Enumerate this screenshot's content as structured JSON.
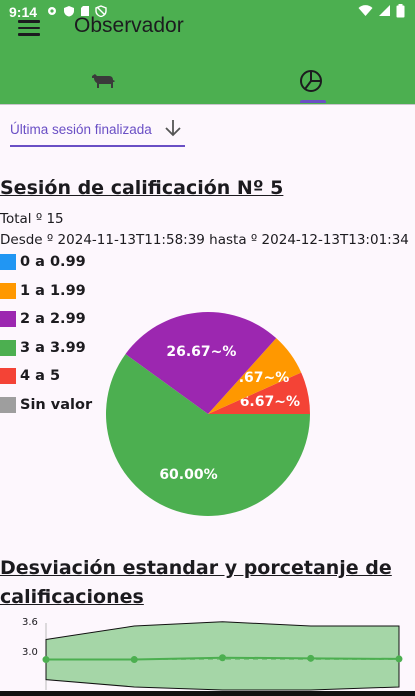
{
  "status_bar": {
    "time": "9:14"
  },
  "app_bar": {
    "title": "Observador"
  },
  "tabs": [
    {
      "icon": "cow-icon",
      "selected": false
    },
    {
      "icon": "pie-chart-icon",
      "selected": true
    }
  ],
  "session_select": {
    "value": "Última sesión finalizada"
  },
  "session": {
    "title": "Sesión de calificación Nº 5",
    "total": "Total º 15",
    "range": "Desde º 2024-11-13T11:58:39 hasta º 2024-12-13T13:01:34"
  },
  "legend": [
    {
      "label": "0 a 0.99",
      "color": "#2196f3"
    },
    {
      "label": "1 a 1.99",
      "color": "#ff9800"
    },
    {
      "label": "2 a 2.99",
      "color": "#9c27b0"
    },
    {
      "label": "3 a 3.99",
      "color": "#4caf50"
    },
    {
      "label": "4 a 5",
      "color": "#f44336"
    },
    {
      "label": "Sin valor",
      "color": "#9e9e9e"
    }
  ],
  "chart_data": [
    {
      "type": "pie",
      "slices": [
        {
          "label": "4 a 5",
          "value": 6.67,
          "text": "6.67~%",
          "color": "#f44336"
        },
        {
          "label": "1 a 1.99",
          "value": 6.67,
          "text": "6.67~%",
          "color": "#ff9800"
        },
        {
          "label": "2 a 2.99",
          "value": 26.67,
          "text": "26.67~%",
          "color": "#9c27b0"
        },
        {
          "label": "3 a 3.99",
          "value": 60.0,
          "text": "60.00%",
          "color": "#4caf50"
        }
      ]
    },
    {
      "type": "line",
      "title": "Desviación estandar y porcetanje de calificaciones",
      "yticks": [
        "3.6",
        "3.0"
      ],
      "x": [
        1,
        2,
        3,
        4,
        5
      ],
      "mean": [
        3.0,
        3.0,
        3.03,
        3.02,
        3.01
      ],
      "band_upper": [
        3.33,
        3.55,
        3.62,
        3.55,
        3.55
      ],
      "band_lower": [
        2.67,
        2.55,
        2.5,
        2.5,
        2.55
      ],
      "ylim": [
        2.5,
        3.6
      ],
      "color": "#4caf50"
    }
  ]
}
